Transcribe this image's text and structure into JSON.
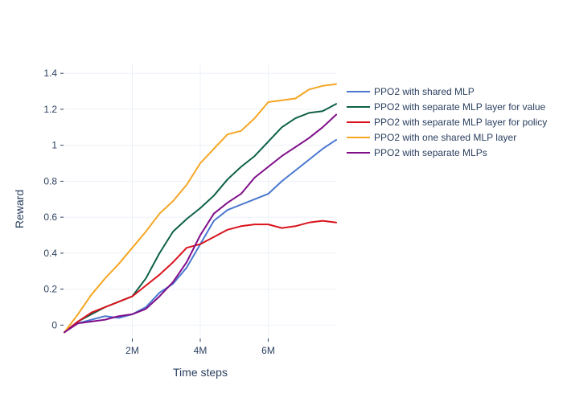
{
  "chart_data": {
    "type": "line",
    "title": "",
    "xlabel": "Time steps",
    "ylabel": "Reward",
    "xlim": [
      0,
      8000000
    ],
    "ylim": [
      -0.07,
      1.45
    ],
    "grid": true,
    "legend_position": "right",
    "x_ticks": [
      {
        "value": 2000000,
        "label": "2M"
      },
      {
        "value": 4000000,
        "label": "4M"
      },
      {
        "value": 6000000,
        "label": "6M"
      }
    ],
    "y_ticks": [
      {
        "value": 0,
        "label": "0"
      },
      {
        "value": 0.2,
        "label": "0.2"
      },
      {
        "value": 0.4,
        "label": "0.4"
      },
      {
        "value": 0.6,
        "label": "0.6"
      },
      {
        "value": 0.8,
        "label": "0.8"
      },
      {
        "value": 1.0,
        "label": "1"
      },
      {
        "value": 1.2,
        "label": "1.2"
      },
      {
        "value": 1.4,
        "label": "1.4"
      }
    ],
    "x": [
      0,
      400000,
      800000,
      1200000,
      1600000,
      2000000,
      2400000,
      2800000,
      3200000,
      3600000,
      4000000,
      4400000,
      4800000,
      5200000,
      5600000,
      6000000,
      6400000,
      6800000,
      7200000,
      7600000,
      8000000
    ],
    "series": [
      {
        "name": "PPO2 with shared MLP",
        "color": "#4a77cf",
        "values": [
          -0.04,
          0.01,
          0.03,
          0.05,
          0.04,
          0.06,
          0.1,
          0.18,
          0.23,
          0.32,
          0.45,
          0.58,
          0.64,
          0.67,
          0.7,
          0.73,
          0.8,
          0.86,
          0.92,
          0.98,
          1.03
        ]
      },
      {
        "name": "PPO2 with separate MLP layer for value",
        "color": "#0e6047",
        "values": [
          -0.04,
          0.02,
          0.06,
          0.1,
          0.13,
          0.16,
          0.26,
          0.4,
          0.52,
          0.59,
          0.65,
          0.72,
          0.81,
          0.88,
          0.94,
          1.02,
          1.1,
          1.15,
          1.18,
          1.19,
          1.23
        ]
      },
      {
        "name": "PPO2 with separate MLP layer for policy",
        "color": "#d9131d",
        "values": [
          -0.04,
          0.02,
          0.07,
          0.1,
          0.13,
          0.16,
          0.22,
          0.28,
          0.35,
          0.43,
          0.45,
          0.49,
          0.53,
          0.55,
          0.56,
          0.56,
          0.54,
          0.55,
          0.57,
          0.58,
          0.57
        ]
      },
      {
        "name": "PPO2 with one shared MLP layer",
        "color": "#f5a623",
        "values": [
          -0.04,
          0.06,
          0.17,
          0.26,
          0.34,
          0.43,
          0.52,
          0.62,
          0.69,
          0.78,
          0.9,
          0.98,
          1.06,
          1.08,
          1.15,
          1.24,
          1.25,
          1.26,
          1.31,
          1.33,
          1.34
        ]
      },
      {
        "name": "PPO2 with separate MLPs",
        "color": "#800d8a",
        "values": [
          -0.04,
          0.01,
          0.02,
          0.03,
          0.05,
          0.06,
          0.09,
          0.16,
          0.24,
          0.35,
          0.5,
          0.62,
          0.68,
          0.73,
          0.82,
          0.88,
          0.94,
          0.99,
          1.04,
          1.1,
          1.17
        ]
      }
    ]
  }
}
